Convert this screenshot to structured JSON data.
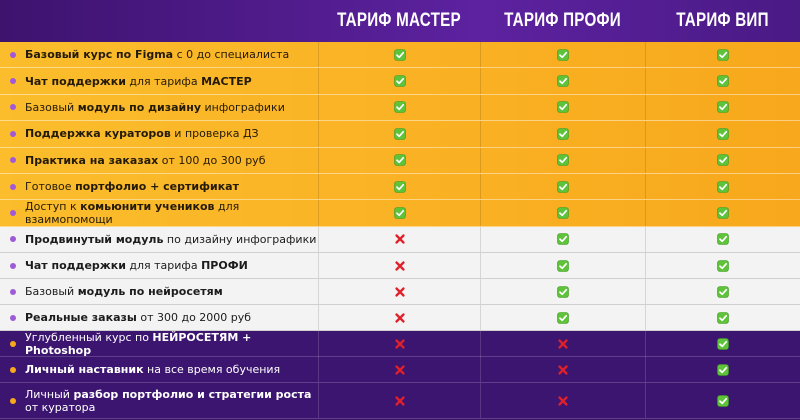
{
  "header": {
    "columns": [
      "ТАРИФ МАСТЕР",
      "ТАРИФ ПРОФИ",
      "ТАРИФ ВИП"
    ]
  },
  "table": {
    "groups": [
      {
        "style": "orange",
        "rows": [
          {
            "label": [
              {
                "text": "Базовый курс по Figma",
                "bold": true
              },
              {
                "text": " с 0 до специалиста",
                "bold": false
              }
            ],
            "included": [
              true,
              true,
              true
            ]
          },
          {
            "label": [
              {
                "text": "Чат поддержки",
                "bold": true
              },
              {
                "text": " для тарифа ",
                "bold": false
              },
              {
                "text": "МАСТЕР",
                "bold": true
              }
            ],
            "included": [
              true,
              true,
              true
            ]
          },
          {
            "label": [
              {
                "text": "Базовый ",
                "bold": false
              },
              {
                "text": "модуль по дизайну",
                "bold": true
              },
              {
                "text": " инфографики",
                "bold": false
              }
            ],
            "included": [
              true,
              true,
              true
            ]
          },
          {
            "label": [
              {
                "text": "Поддержка кураторов",
                "bold": true
              },
              {
                "text": " и проверка ДЗ",
                "bold": false
              }
            ],
            "included": [
              true,
              true,
              true
            ]
          },
          {
            "label": [
              {
                "text": "Практика на заказах",
                "bold": true
              },
              {
                "text": " от 100 до 300 руб",
                "bold": false
              }
            ],
            "included": [
              true,
              true,
              true
            ]
          },
          {
            "label": [
              {
                "text": "Готовое ",
                "bold": false
              },
              {
                "text": "портфолио + сертификат",
                "bold": true
              }
            ],
            "included": [
              true,
              true,
              true
            ]
          },
          {
            "label": [
              {
                "text": "Доступ к ",
                "bold": false
              },
              {
                "text": "комьюнити учеников",
                "bold": true
              },
              {
                "text": " для взаимопомощи",
                "bold": false
              }
            ],
            "included": [
              true,
              true,
              true
            ]
          }
        ]
      },
      {
        "style": "white",
        "rows": [
          {
            "label": [
              {
                "text": "Продвинутый модуль",
                "bold": true
              },
              {
                "text": " по дизайну инфографики",
                "bold": false
              }
            ],
            "included": [
              false,
              true,
              true
            ]
          },
          {
            "label": [
              {
                "text": "Чат поддержки",
                "bold": true
              },
              {
                "text": " для тарифа ",
                "bold": false
              },
              {
                "text": "ПРОФИ",
                "bold": true
              }
            ],
            "included": [
              false,
              true,
              true
            ]
          },
          {
            "label": [
              {
                "text": "Базовый ",
                "bold": false
              },
              {
                "text": "модуль по нейросетям",
                "bold": true
              }
            ],
            "included": [
              false,
              true,
              true
            ]
          },
          {
            "label": [
              {
                "text": "Реальные заказы",
                "bold": true
              },
              {
                "text": " от 300 до 2000 руб",
                "bold": false
              }
            ],
            "included": [
              false,
              true,
              true
            ]
          }
        ]
      },
      {
        "style": "purple",
        "rows": [
          {
            "label": [
              {
                "text": "Углубленный курс по ",
                "bold": false
              },
              {
                "text": "НЕЙРОСЕТЯМ + Photoshop",
                "bold": true
              }
            ],
            "included": [
              false,
              false,
              true
            ]
          },
          {
            "label": [
              {
                "text": "Личный наставник",
                "bold": true
              },
              {
                "text": " на все время обучения",
                "bold": false
              }
            ],
            "included": [
              false,
              false,
              true
            ]
          },
          {
            "label": [
              {
                "text": "Личный ",
                "bold": false
              },
              {
                "text": "разбор портфолио и стратегии роста",
                "bold": true
              },
              {
                "text": " от куратора",
                "bold": false
              }
            ],
            "included": [
              false,
              false,
              true
            ]
          }
        ]
      }
    ]
  }
}
